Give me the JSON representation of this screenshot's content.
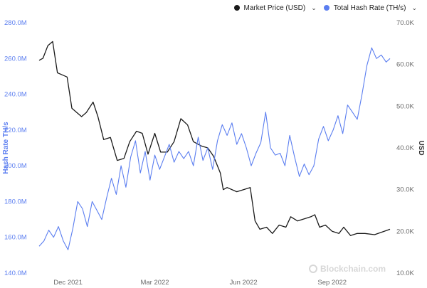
{
  "legend": {
    "items": [
      {
        "label": "Market Price (USD)",
        "color": "#1a1a1a"
      },
      {
        "label": "Total Hash Rate (TH/s)",
        "color": "#5b7ef0"
      }
    ]
  },
  "watermark": "Blockchain.com",
  "chart_data": {
    "type": "line",
    "title": "",
    "x_dates": [
      "2021-11-01",
      "2022-10-31"
    ],
    "x_tick_labels": [
      "Dec 2021",
      "Mar 2022",
      "Jun 2022",
      "Sep 2022"
    ],
    "y_left": {
      "label": "Hash Rate TH/s",
      "range": [
        140000000,
        280000000
      ],
      "ticks": [
        140000000,
        160000000,
        180000000,
        200000000,
        220000000,
        240000000,
        260000000,
        280000000
      ],
      "tick_labels": [
        "140.0M",
        "160.0M",
        "180.0M",
        "200.0M",
        "220.0M",
        "240.0M",
        "260.0M",
        "280.0M"
      ]
    },
    "y_right": {
      "label": "USD",
      "range": [
        10000,
        70000
      ],
      "ticks": [
        10000,
        20000,
        30000,
        40000,
        50000,
        60000,
        70000
      ],
      "tick_labels": [
        "10.0K",
        "20.0K",
        "30.0K",
        "40.0K",
        "50.0K",
        "60.0K",
        "70.0K"
      ]
    },
    "grid": false,
    "series": [
      {
        "name": "Market Price (USD)",
        "axis": "right",
        "color": "#1a1a1a",
        "dates": [
          "2021-11-01",
          "2021-11-05",
          "2021-11-10",
          "2021-11-15",
          "2021-11-20",
          "2021-11-25",
          "2021-11-30",
          "2021-12-05",
          "2021-12-10",
          "2021-12-15",
          "2021-12-20",
          "2021-12-27",
          "2022-01-01",
          "2022-01-07",
          "2022-01-14",
          "2022-01-21",
          "2022-01-28",
          "2022-02-03",
          "2022-02-10",
          "2022-02-16",
          "2022-02-22",
          "2022-03-01",
          "2022-03-07",
          "2022-03-14",
          "2022-03-21",
          "2022-03-28",
          "2022-04-04",
          "2022-04-10",
          "2022-04-18",
          "2022-04-25",
          "2022-05-01",
          "2022-05-08",
          "2022-05-11",
          "2022-05-15",
          "2022-05-25",
          "2022-06-01",
          "2022-06-08",
          "2022-06-13",
          "2022-06-18",
          "2022-06-25",
          "2022-07-01",
          "2022-07-08",
          "2022-07-15",
          "2022-07-20",
          "2022-07-27",
          "2022-08-03",
          "2022-08-10",
          "2022-08-14",
          "2022-08-19",
          "2022-08-25",
          "2022-09-01",
          "2022-09-08",
          "2022-09-13",
          "2022-09-20",
          "2022-09-27",
          "2022-10-05",
          "2022-10-15",
          "2022-10-25",
          "2022-10-31"
        ],
        "values": [
          61000,
          61500,
          64500,
          65500,
          58000,
          57500,
          57000,
          49500,
          48500,
          47500,
          48500,
          51000,
          47500,
          42000,
          42500,
          37000,
          37500,
          41500,
          44000,
          43500,
          38500,
          43500,
          39000,
          39000,
          41500,
          47000,
          45500,
          41500,
          40500,
          40000,
          38000,
          34000,
          30000,
          30500,
          29500,
          30000,
          30500,
          22500,
          20500,
          21000,
          19500,
          21500,
          21000,
          23500,
          22500,
          23000,
          23500,
          24000,
          21000,
          21500,
          20000,
          19500,
          21000,
          19000,
          19500,
          19500,
          19200,
          20000,
          20500
        ]
      },
      {
        "name": "Total Hash Rate (TH/s)",
        "axis": "left",
        "color": "#5b7ef0",
        "dates": [
          "2021-11-01",
          "2021-11-06",
          "2021-11-11",
          "2021-11-16",
          "2021-11-21",
          "2021-11-26",
          "2021-12-01",
          "2021-12-06",
          "2021-12-11",
          "2021-12-16",
          "2021-12-21",
          "2021-12-26",
          "2021-12-31",
          "2022-01-05",
          "2022-01-10",
          "2022-01-15",
          "2022-01-20",
          "2022-01-25",
          "2022-01-30",
          "2022-02-04",
          "2022-02-09",
          "2022-02-14",
          "2022-02-19",
          "2022-02-24",
          "2022-03-01",
          "2022-03-06",
          "2022-03-11",
          "2022-03-16",
          "2022-03-21",
          "2022-03-26",
          "2022-03-31",
          "2022-04-05",
          "2022-04-10",
          "2022-04-15",
          "2022-04-20",
          "2022-04-25",
          "2022-04-30",
          "2022-05-05",
          "2022-05-10",
          "2022-05-15",
          "2022-05-20",
          "2022-05-25",
          "2022-05-30",
          "2022-06-04",
          "2022-06-09",
          "2022-06-14",
          "2022-06-19",
          "2022-06-24",
          "2022-06-29",
          "2022-07-04",
          "2022-07-09",
          "2022-07-14",
          "2022-07-19",
          "2022-07-24",
          "2022-07-29",
          "2022-08-03",
          "2022-08-08",
          "2022-08-13",
          "2022-08-18",
          "2022-08-23",
          "2022-08-28",
          "2022-09-02",
          "2022-09-07",
          "2022-09-12",
          "2022-09-17",
          "2022-09-22",
          "2022-09-27",
          "2022-10-02",
          "2022-10-07",
          "2022-10-12",
          "2022-10-17",
          "2022-10-22",
          "2022-10-27",
          "2022-10-31"
        ],
        "values": [
          155000000,
          158000000,
          164000000,
          160000000,
          166000000,
          158000000,
          153000000,
          165000000,
          180000000,
          176000000,
          166000000,
          180000000,
          175000000,
          170000000,
          182000000,
          193000000,
          184000000,
          200000000,
          188000000,
          205000000,
          214000000,
          196000000,
          208000000,
          192000000,
          206000000,
          198000000,
          205000000,
          212000000,
          202000000,
          208000000,
          204000000,
          208000000,
          200000000,
          216000000,
          203000000,
          210000000,
          198000000,
          214000000,
          223000000,
          217000000,
          224000000,
          212000000,
          218000000,
          210000000,
          200000000,
          207000000,
          213000000,
          230000000,
          210000000,
          206000000,
          207000000,
          200000000,
          217000000,
          205000000,
          194000000,
          201000000,
          195000000,
          200000000,
          215000000,
          222000000,
          214000000,
          220000000,
          228000000,
          218000000,
          234000000,
          230000000,
          226000000,
          240000000,
          256000000,
          266000000,
          260000000,
          262000000,
          258000000,
          260000000
        ]
      }
    ]
  }
}
